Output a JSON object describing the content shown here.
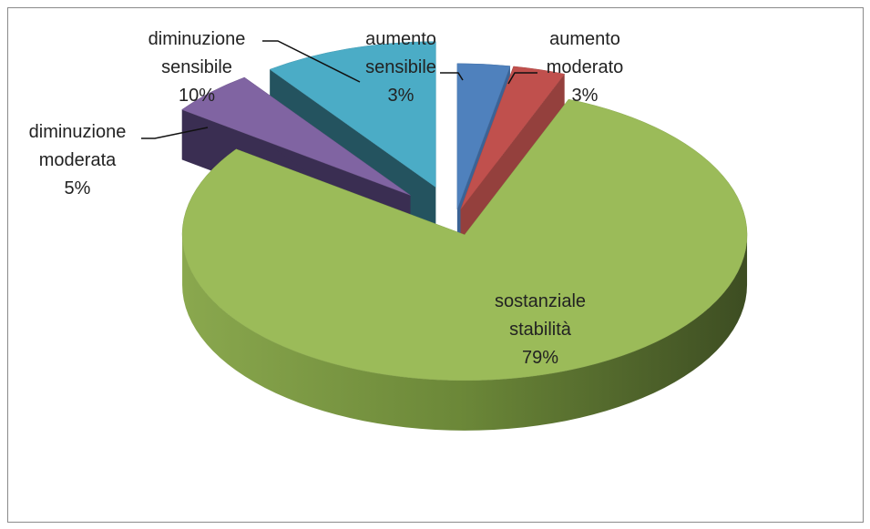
{
  "chart_data": {
    "type": "pie",
    "categories": [
      "aumento sensibile",
      "aumento moderato",
      "sostanziale stabilità",
      "diminuzione moderata",
      "diminuzione sensibile"
    ],
    "values": [
      3,
      3,
      79,
      5,
      10
    ],
    "value_labels": [
      "3%",
      "3%",
      "79%",
      "5%",
      "10%"
    ],
    "colors": [
      "#4f81bd",
      "#c0504d",
      "#9bbb59",
      "#8064a2",
      "#4bacc6"
    ]
  }
}
